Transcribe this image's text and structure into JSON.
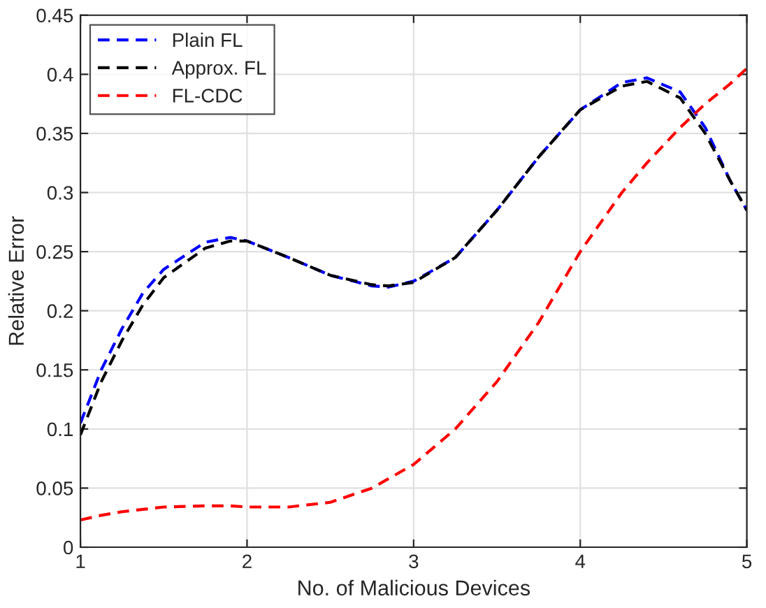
{
  "chart_data": {
    "type": "line",
    "xlabel": "No. of Malicious Devices",
    "ylabel": "Relative Error",
    "xlim": [
      1,
      5
    ],
    "xticks": [
      1,
      2,
      3,
      4,
      5
    ],
    "ylim": [
      0,
      0.45
    ],
    "yticks": [
      0,
      0.05,
      0.1,
      0.15,
      0.2,
      0.25,
      0.3,
      0.35,
      0.4,
      0.45
    ],
    "grid": true,
    "legend": "top left",
    "line_style": "dashed",
    "marker": "none",
    "x": [
      1,
      1.125,
      1.25,
      1.375,
      1.5,
      1.75,
      1.9,
      2,
      2.25,
      2.5,
      2.75,
      2.85,
      3,
      3.25,
      3.5,
      3.75,
      4,
      4.25,
      4.4,
      4.6,
      4.75,
      4.9,
      5
    ],
    "series": [
      {
        "name": "Plain FL",
        "color": "#0000ff",
        "values": [
          0.105,
          0.15,
          0.185,
          0.215,
          0.235,
          0.258,
          0.262,
          0.259,
          0.245,
          0.23,
          0.221,
          0.22,
          0.225,
          0.245,
          0.285,
          0.33,
          0.37,
          0.393,
          0.397,
          0.385,
          0.355,
          0.31,
          0.285
        ]
      },
      {
        "name": "Approx. FL",
        "color": "#000000",
        "values": [
          0.095,
          0.14,
          0.175,
          0.205,
          0.228,
          0.253,
          0.259,
          0.259,
          0.245,
          0.23,
          0.222,
          0.221,
          0.224,
          0.245,
          0.285,
          0.33,
          0.37,
          0.39,
          0.394,
          0.38,
          0.35,
          0.31,
          0.285
        ]
      },
      {
        "name": "FL-CDC",
        "color": "#ff0000",
        "values": [
          0.023,
          0.027,
          0.03,
          0.032,
          0.034,
          0.035,
          0.035,
          0.034,
          0.034,
          0.038,
          0.05,
          0.058,
          0.07,
          0.1,
          0.14,
          0.19,
          0.25,
          0.3,
          0.325,
          0.355,
          0.375,
          0.392,
          0.405
        ]
      }
    ]
  }
}
